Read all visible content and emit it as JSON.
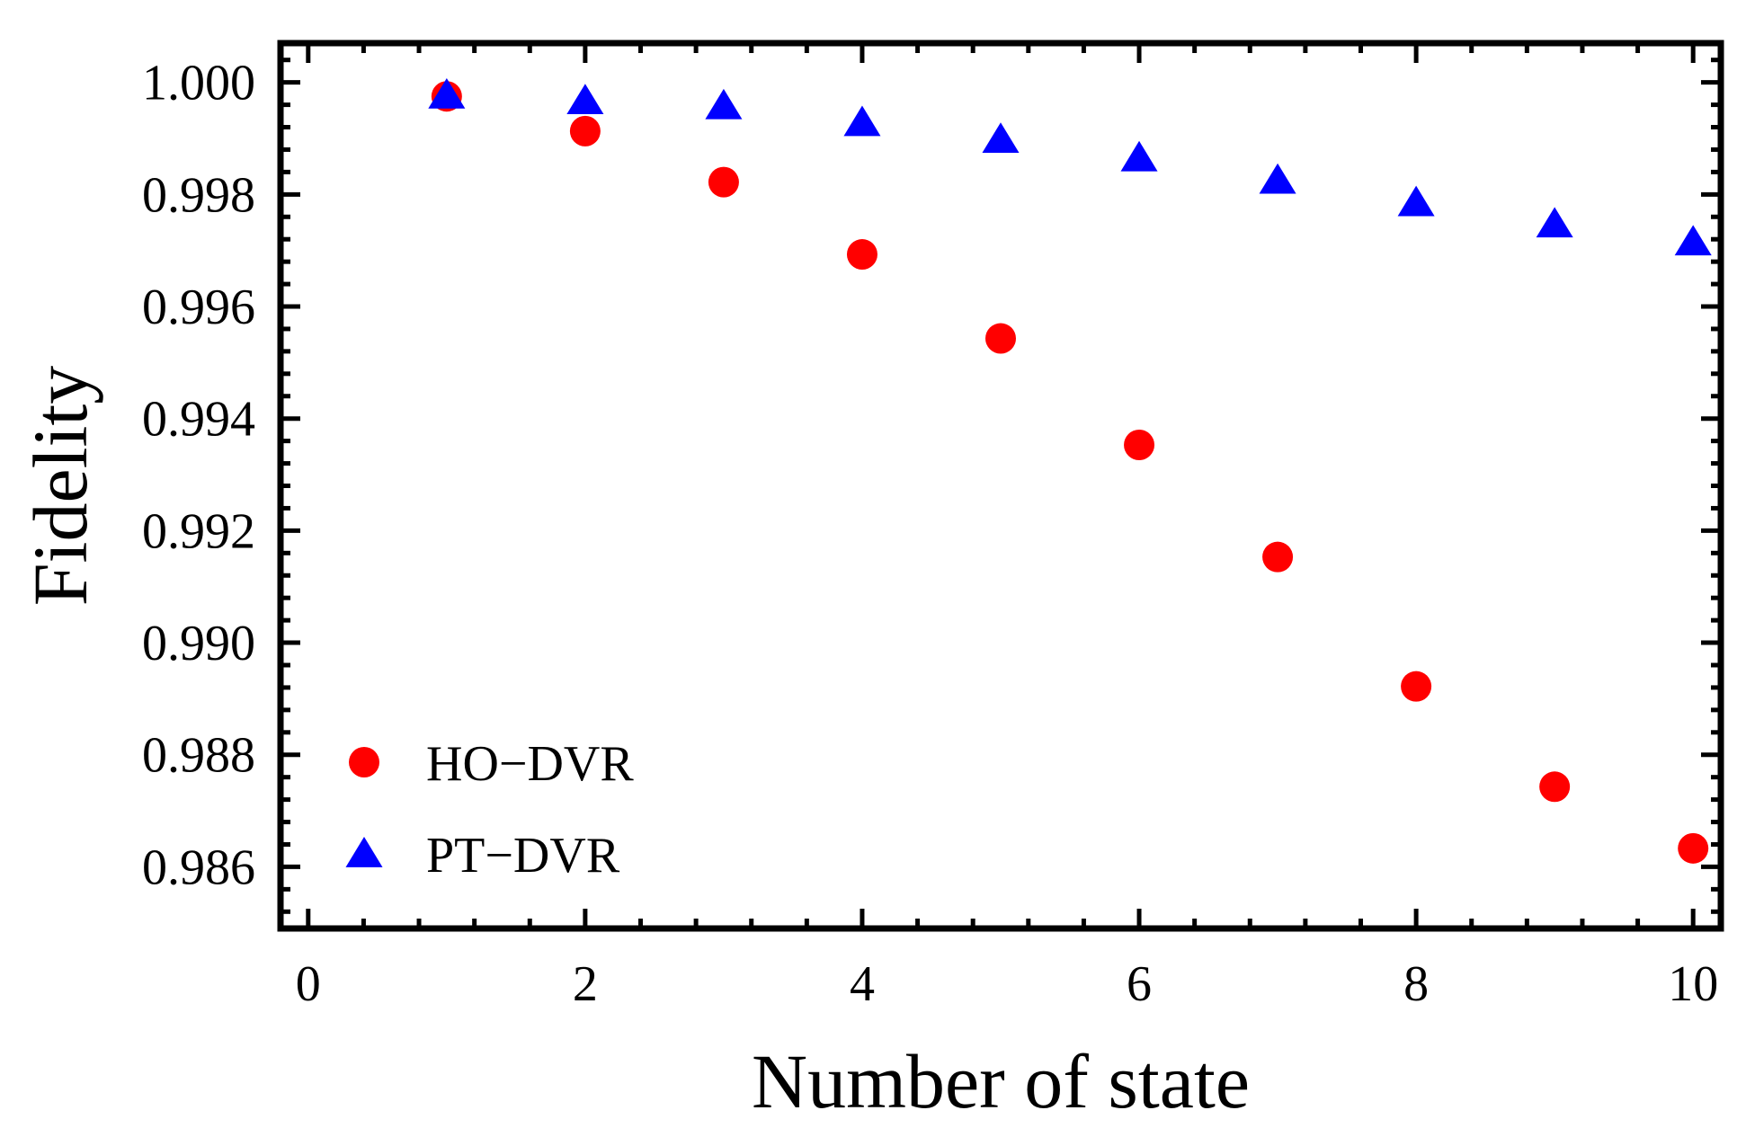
{
  "chart_data": {
    "type": "scatter",
    "title": "",
    "xlabel": "Number of state",
    "ylabel": "Fidelity",
    "xlim": [
      -0.2,
      10.2
    ],
    "ylim": [
      0.9849,
      1.0007
    ],
    "xticks": [
      0,
      2,
      4,
      6,
      8,
      10
    ],
    "xtick_labels": [
      "0",
      "2",
      "4",
      "6",
      "8",
      "10"
    ],
    "yticks": [
      0.986,
      0.988,
      0.99,
      0.992,
      0.994,
      0.996,
      0.998,
      1.0
    ],
    "ytick_labels": [
      "0.986",
      "0.988",
      "0.990",
      "0.992",
      "0.994",
      "0.996",
      "0.998",
      "1.000"
    ],
    "grid": false,
    "legend_position": "bottom-left",
    "series": [
      {
        "name": "HO−DVR",
        "marker": "circle",
        "color": "#ff0000",
        "x": [
          1,
          2,
          3,
          4,
          5,
          6,
          7,
          8,
          9,
          10
        ],
        "y": [
          0.99975,
          0.99913,
          0.99822,
          0.99693,
          0.99543,
          0.99353,
          0.99153,
          0.98922,
          0.98743,
          0.98633
        ]
      },
      {
        "name": "PT−DVR",
        "marker": "triangle",
        "color": "#0000ff",
        "x": [
          1,
          2,
          3,
          4,
          5,
          6,
          7,
          8,
          9,
          10
        ],
        "y": [
          0.99977,
          0.99967,
          0.99958,
          0.99928,
          0.99898,
          0.99865,
          0.99825,
          0.99785,
          0.99747,
          0.99715
        ]
      }
    ]
  }
}
